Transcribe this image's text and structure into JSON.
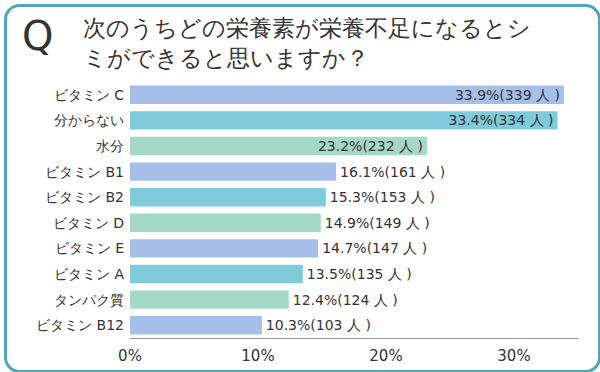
{
  "chart_data": {
    "type": "bar",
    "orientation": "horizontal",
    "title": "次のうちどの栄養素が栄養不足になるとシミができると思いますか？",
    "annotations": [
      "Q"
    ],
    "categories": [
      "ビタミン C",
      "分からない",
      "水分",
      "ビタミン B1",
      "ビタミン B2",
      "ビタミン D",
      "ビタミン E",
      "ビタミン A",
      "タンパク質",
      "ビタミン B12"
    ],
    "values": [
      33.9,
      33.4,
      23.2,
      16.1,
      15.3,
      14.9,
      14.7,
      13.5,
      12.4,
      10.3
    ],
    "value_labels": [
      "33.9%(339 人 )",
      "33.4%(334 人 )",
      "23.2%(232 人 )",
      "16.1%(161 人 )",
      "15.3%(153 人 )",
      "14.9%(149 人 )",
      "14.7%(147 人 )",
      "13.5%(135 人 )",
      "12.4%(124 人 )",
      "10.3%(103 人 )"
    ],
    "colors": [
      "#a6bfe9",
      "#7fcadb",
      "#a3d9c6",
      "#a6bfe9",
      "#7fcadb",
      "#a3d9c6",
      "#a6bfe9",
      "#7fcadb",
      "#a3d9c6",
      "#a6bfe9"
    ],
    "xlim": [
      0,
      35
    ],
    "xticks": [
      {
        "value": 0,
        "label": "0%"
      },
      {
        "value": 10,
        "label": "10%"
      },
      {
        "value": 20,
        "label": "20%"
      },
      {
        "value": 30,
        "label": "30%"
      }
    ],
    "data_labels": true,
    "grid": false
  }
}
